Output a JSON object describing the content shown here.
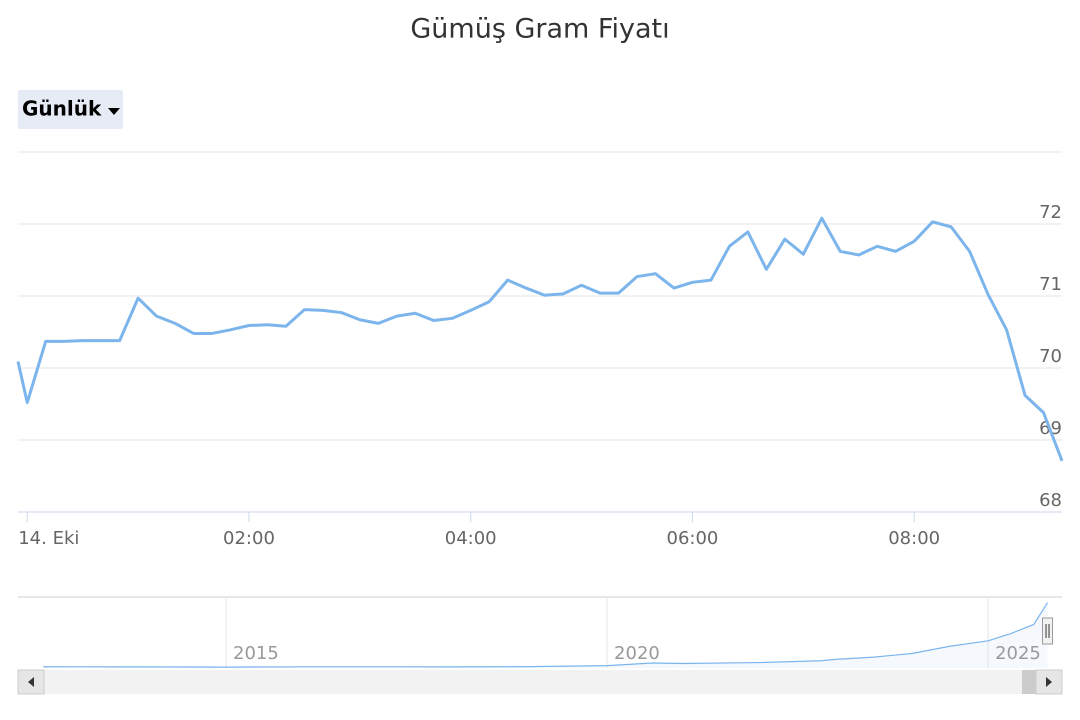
{
  "chart_data": {
    "type": "line",
    "title": "Gümüş Gram Fiyatı",
    "range_button": "Günlük",
    "color": "#7cb5ec",
    "grid": true,
    "x": [
      -5,
      0,
      10,
      20,
      30,
      40,
      50,
      60,
      70,
      80,
      90,
      100,
      110,
      120,
      130,
      140,
      150,
      160,
      170,
      180,
      190,
      200,
      210,
      220,
      230,
      240,
      250,
      260,
      270,
      280,
      290,
      300,
      310,
      320,
      330,
      340,
      350,
      360,
      370,
      380,
      390,
      400,
      410,
      420,
      430,
      440,
      450,
      460,
      470,
      480,
      490,
      500,
      510,
      520,
      530,
      540,
      550,
      560
    ],
    "values": [
      70.09,
      69.52,
      70.37,
      70.37,
      70.38,
      70.38,
      70.38,
      70.97,
      70.72,
      70.62,
      70.48,
      70.48,
      70.53,
      70.59,
      70.6,
      70.58,
      70.81,
      70.8,
      70.77,
      70.67,
      70.62,
      70.72,
      70.76,
      70.66,
      70.69,
      70.8,
      70.92,
      71.22,
      71.11,
      71.01,
      71.03,
      71.15,
      71.04,
      71.04,
      71.27,
      71.31,
      71.11,
      71.19,
      71.22,
      71.69,
      71.89,
      71.37,
      71.79,
      71.58,
      72.08,
      71.62,
      71.57,
      71.69,
      71.62,
      71.76,
      72.03,
      71.96,
      71.62,
      71.02,
      70.53,
      69.62,
      69.38,
      68.71
    ],
    "xlim": [
      -5,
      560
    ],
    "xticks": [
      {
        "value": 0,
        "label": "14. Eki"
      },
      {
        "value": 120,
        "label": "02:00"
      },
      {
        "value": 240,
        "label": "04:00"
      },
      {
        "value": 360,
        "label": "06:00"
      },
      {
        "value": 480,
        "label": "08:00"
      }
    ],
    "ylim": [
      68,
      73
    ],
    "yticks": [
      68,
      69,
      70,
      71,
      72
    ],
    "navigator": {
      "type": "area",
      "color": "#7cb5ec",
      "x": [
        2012.6,
        2013,
        2014,
        2015,
        2016,
        2017,
        2018,
        2019,
        2020,
        2020.6,
        2021,
        2022,
        2022.8,
        2023,
        2023.5,
        2024,
        2024.5,
        2025,
        2025.3,
        2025.6,
        2025.78
      ],
      "values": [
        1.4,
        1.3,
        1.2,
        1.0,
        1.3,
        1.3,
        1.2,
        1.5,
        2.6,
        5.5,
        5.0,
        6.0,
        8,
        9.5,
        12,
        16,
        24,
        30,
        38,
        48,
        72
      ],
      "xlim": [
        2012.27,
        2025.97
      ],
      "xticks": [
        2015,
        2020,
        2025
      ],
      "ylim": [
        0,
        75
      ]
    }
  }
}
